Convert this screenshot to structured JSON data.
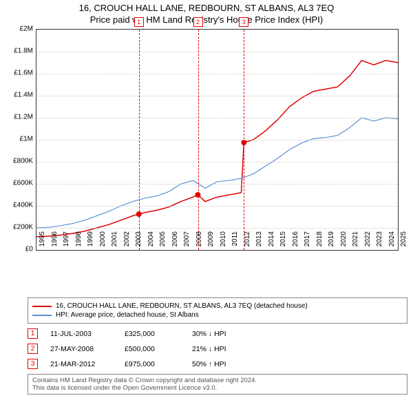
{
  "title": "16, CROUCH HALL LANE, REDBOURN, ST ALBANS, AL3 7EQ",
  "subtitle": "Price paid vs. HM Land Registry's House Price Index (HPI)",
  "chart": {
    "type": "line",
    "background_color": "#ffffff",
    "grid_color": "#cccccc",
    "ylim": [
      0,
      2000000
    ],
    "ytick_step": 200000,
    "yticks": [
      "£0",
      "£200K",
      "£400K",
      "£600K",
      "£800K",
      "£1M",
      "£1.2M",
      "£1.4M",
      "£1.6M",
      "£1.8M",
      "£2M"
    ],
    "xlim": [
      1995,
      2025
    ],
    "xticks": [
      "1995",
      "1996",
      "1997",
      "1998",
      "1999",
      "2000",
      "2001",
      "2002",
      "2003",
      "2004",
      "2005",
      "2006",
      "2007",
      "2008",
      "2009",
      "2010",
      "2011",
      "2012",
      "2013",
      "2014",
      "2015",
      "2016",
      "2017",
      "2018",
      "2019",
      "2020",
      "2021",
      "2022",
      "2023",
      "2024",
      "2025"
    ],
    "series": [
      {
        "name": "property",
        "label": "16, CROUCH HALL LANE, REDBOURN, ST ALBANS, AL3 7EQ (detached house)",
        "color": "#e00000",
        "line_width": 1.5,
        "points": [
          [
            1995,
            120000
          ],
          [
            1996,
            125000
          ],
          [
            1997,
            135000
          ],
          [
            1998,
            150000
          ],
          [
            1999,
            170000
          ],
          [
            2000,
            200000
          ],
          [
            2001,
            230000
          ],
          [
            2002,
            270000
          ],
          [
            2003,
            310000
          ],
          [
            2003.5,
            325000
          ],
          [
            2004,
            340000
          ],
          [
            2005,
            360000
          ],
          [
            2006,
            390000
          ],
          [
            2007,
            440000
          ],
          [
            2008,
            480000
          ],
          [
            2008.4,
            500000
          ],
          [
            2009,
            440000
          ],
          [
            2010,
            480000
          ],
          [
            2011,
            500000
          ],
          [
            2012,
            520000
          ],
          [
            2012.22,
            975000
          ],
          [
            2013,
            1000000
          ],
          [
            2014,
            1080000
          ],
          [
            2015,
            1180000
          ],
          [
            2016,
            1300000
          ],
          [
            2017,
            1380000
          ],
          [
            2018,
            1440000
          ],
          [
            2019,
            1460000
          ],
          [
            2020,
            1480000
          ],
          [
            2021,
            1580000
          ],
          [
            2022,
            1720000
          ],
          [
            2023,
            1680000
          ],
          [
            2024,
            1720000
          ],
          [
            2025,
            1700000
          ]
        ]
      },
      {
        "name": "hpi",
        "label": "HPI: Average price, detached house, St Albans",
        "color": "#5b8fd6",
        "line_width": 1.2,
        "points": [
          [
            1995,
            200000
          ],
          [
            1996,
            205000
          ],
          [
            1997,
            220000
          ],
          [
            1998,
            240000
          ],
          [
            1999,
            270000
          ],
          [
            2000,
            310000
          ],
          [
            2001,
            350000
          ],
          [
            2002,
            400000
          ],
          [
            2003,
            440000
          ],
          [
            2004,
            470000
          ],
          [
            2005,
            490000
          ],
          [
            2006,
            530000
          ],
          [
            2007,
            600000
          ],
          [
            2008,
            630000
          ],
          [
            2009,
            560000
          ],
          [
            2010,
            620000
          ],
          [
            2011,
            630000
          ],
          [
            2012,
            650000
          ],
          [
            2013,
            690000
          ],
          [
            2014,
            760000
          ],
          [
            2015,
            830000
          ],
          [
            2016,
            910000
          ],
          [
            2017,
            970000
          ],
          [
            2018,
            1010000
          ],
          [
            2019,
            1020000
          ],
          [
            2020,
            1040000
          ],
          [
            2021,
            1110000
          ],
          [
            2022,
            1200000
          ],
          [
            2023,
            1170000
          ],
          [
            2024,
            1200000
          ],
          [
            2025,
            1190000
          ]
        ]
      }
    ],
    "sale_markers": [
      {
        "num": "1",
        "x": 2003.5,
        "y": 325000
      },
      {
        "num": "2",
        "x": 2008.4,
        "y": 500000
      },
      {
        "num": "3",
        "x": 2012.22,
        "y": 975000
      }
    ]
  },
  "legend": {
    "items": [
      {
        "color": "#e00000",
        "label": "16, CROUCH HALL LANE, REDBOURN, ST ALBANS, AL3 7EQ (detached house)"
      },
      {
        "color": "#5b8fd6",
        "label": "HPI: Average price, detached house, St Albans"
      }
    ]
  },
  "events": [
    {
      "num": "1",
      "date": "11-JUL-2003",
      "price": "£325,000",
      "diff": "30% ↓ HPI"
    },
    {
      "num": "2",
      "date": "27-MAY-2008",
      "price": "£500,000",
      "diff": "21% ↓ HPI"
    },
    {
      "num": "3",
      "date": "21-MAR-2012",
      "price": "£975,000",
      "diff": "50% ↑ HPI"
    }
  ],
  "footer": {
    "line1": "Contains HM Land Registry data © Crown copyright and database right 2024.",
    "line2": "This data is licensed under the Open Government Licence v3.0."
  }
}
